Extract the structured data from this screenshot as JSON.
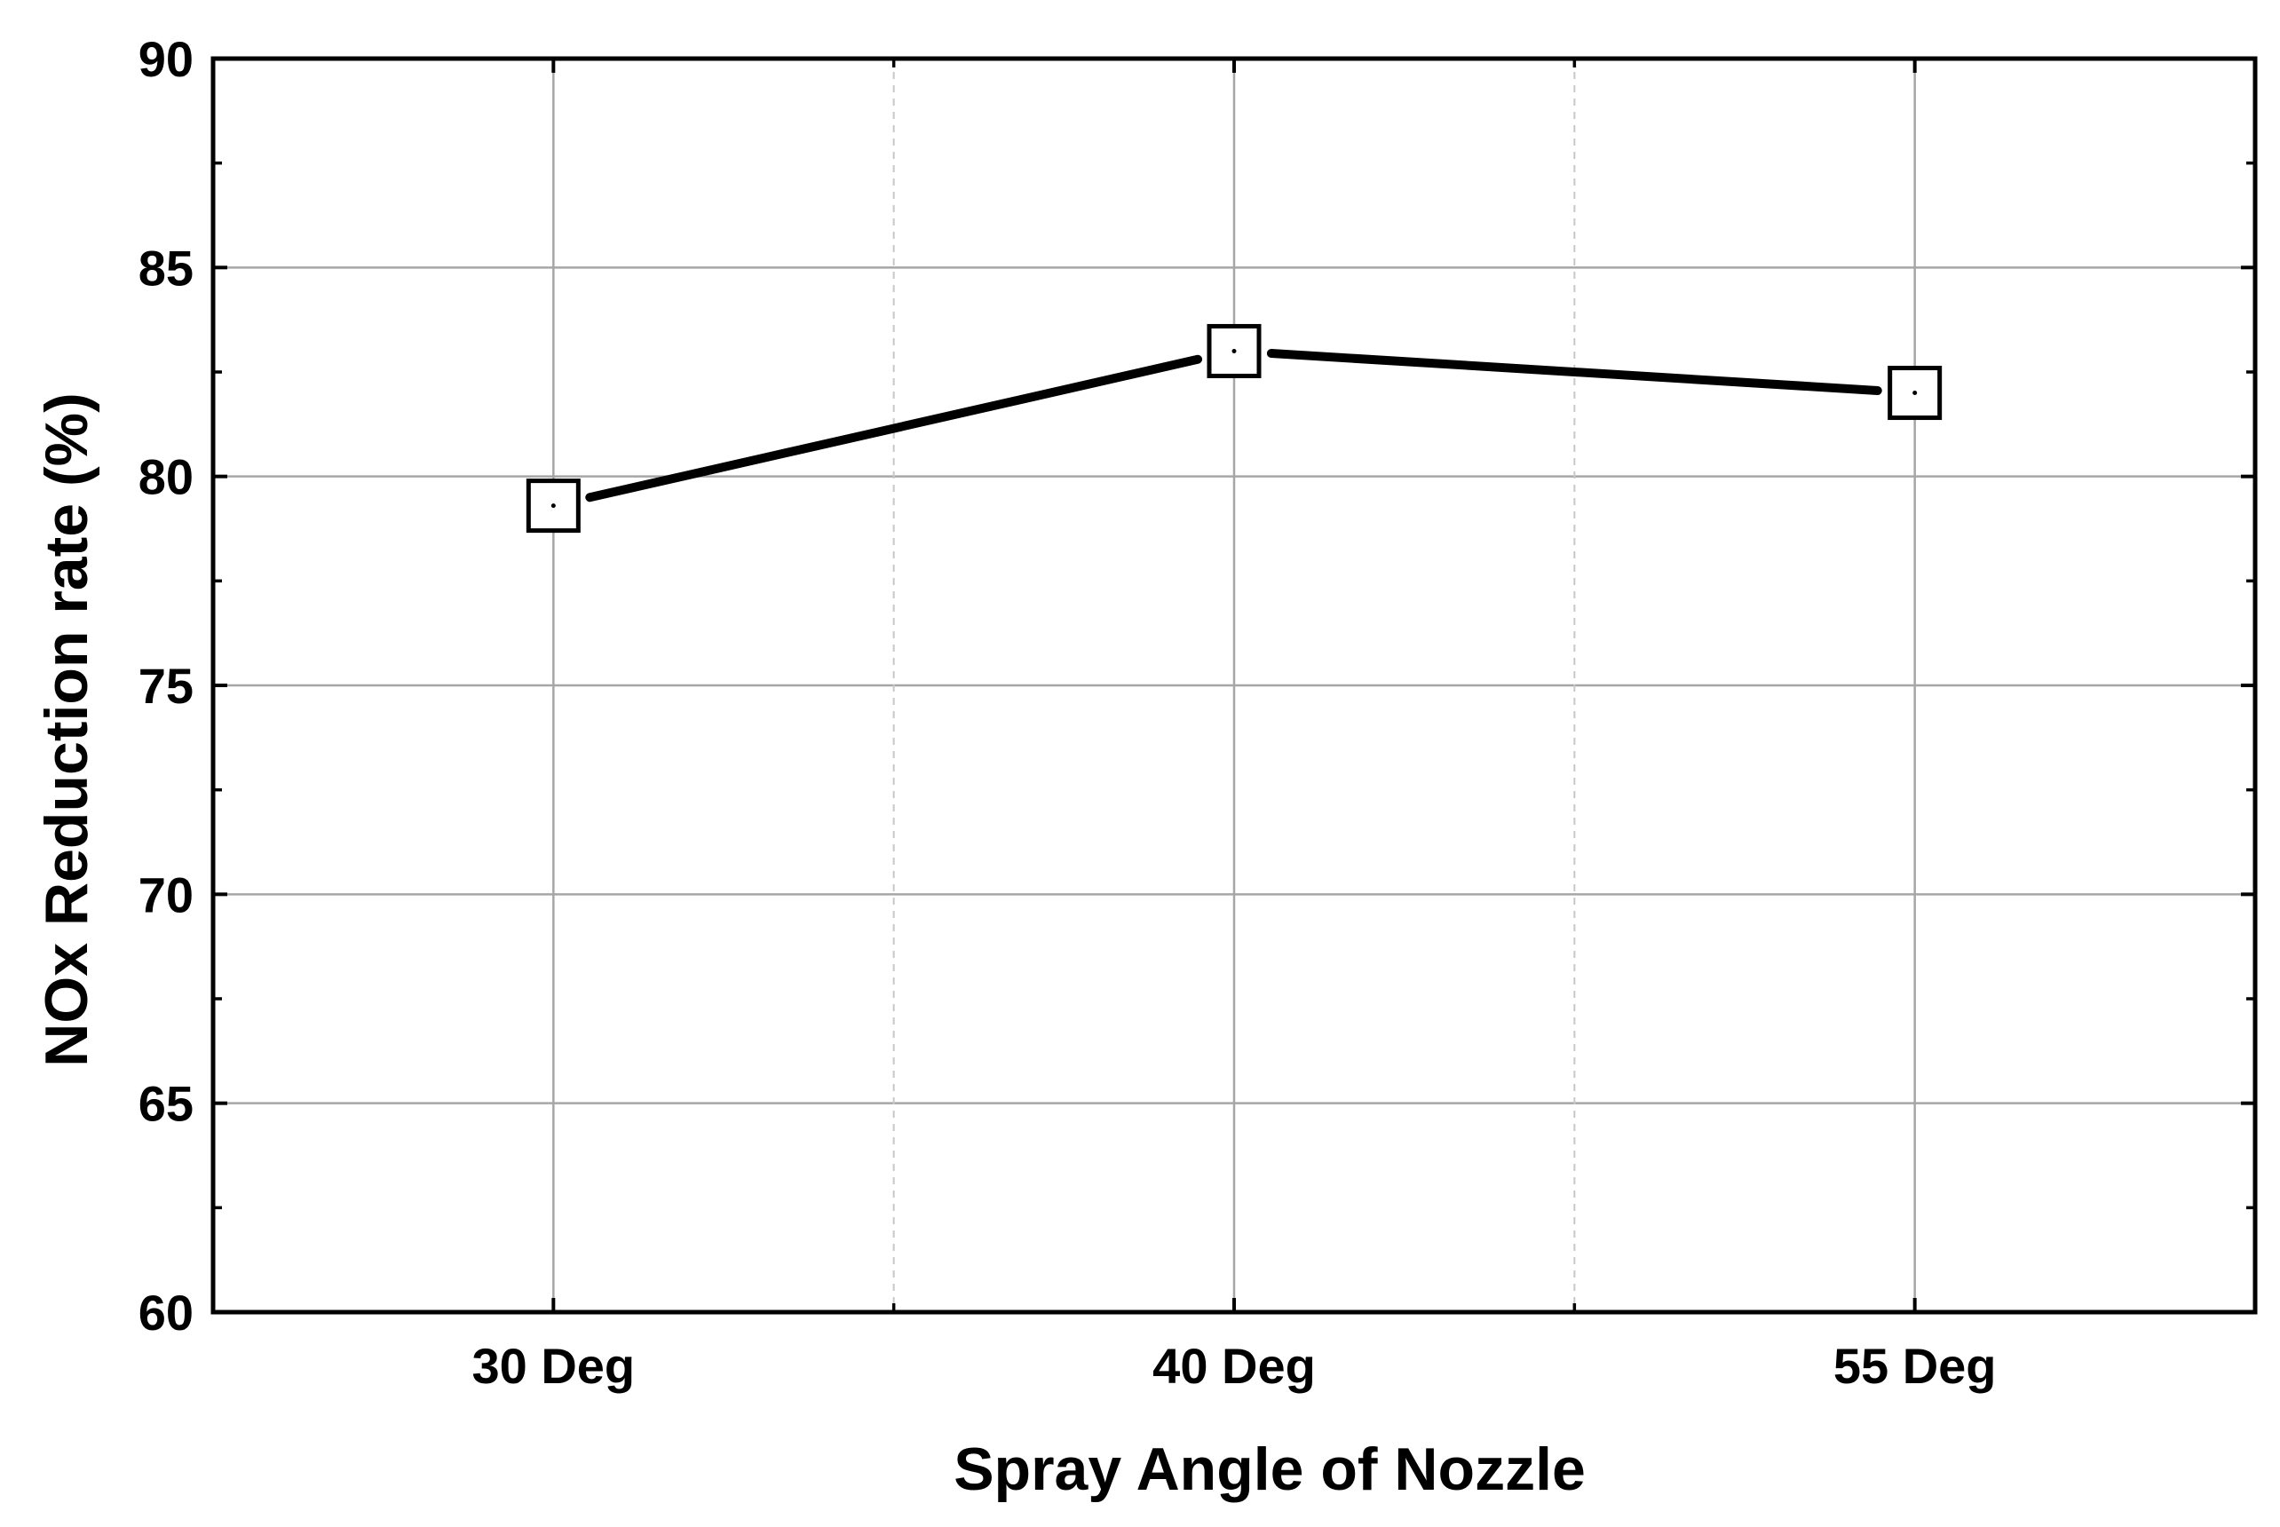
{
  "chart_data": {
    "type": "line",
    "title": "",
    "xlabel": "Spray Angle of Nozzle",
    "ylabel": "NOx Reduction rate (%)",
    "categories": [
      "30 Deg",
      "40 Deg",
      "55 Deg"
    ],
    "series": [
      {
        "name": "NOx Reduction rate",
        "values": [
          79.3,
          83.0,
          82.0
        ],
        "marker": "open-square-with-center-dot",
        "color": "#000000"
      }
    ],
    "ylim": [
      60,
      90
    ],
    "yticks": [
      "60",
      "65",
      "70",
      "75",
      "80",
      "85",
      "90"
    ],
    "grid": true,
    "legend": "none",
    "colors": {
      "axis": "#000000",
      "grid_major": "#a6a6a6",
      "grid_minor": "#c8c8c8",
      "line": "#000000"
    }
  }
}
